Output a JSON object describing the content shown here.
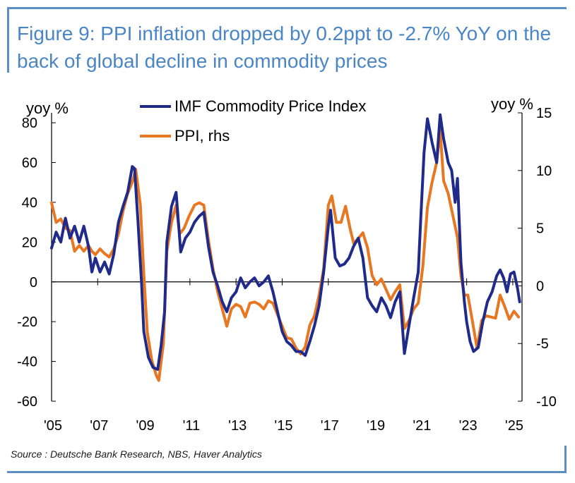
{
  "title": "Figure 9: PPI inflation dropped by 0.2ppt to -2.7% YoY on the back of global decline in commodity prices",
  "source": "Source : Deutsche Bank Research, NBS, Haver Analytics",
  "colors": {
    "accent": "#4a86c5",
    "imf": "#1f2a8a",
    "ppi": "#e87722"
  },
  "chart_data": {
    "type": "line",
    "left_axis_label": "yoy %",
    "right_axis_label": "yoy %",
    "ylim_left": [
      -60,
      85
    ],
    "ylim_right": [
      -10,
      15
    ],
    "yticks_left": [
      80,
      60,
      40,
      20,
      0,
      -20,
      -40,
      -60
    ],
    "yticks_right": [
      15,
      10,
      5,
      0,
      -5,
      -10
    ],
    "xlim": [
      2005,
      2025.4
    ],
    "xticks": [
      {
        "x": 2005,
        "label": "'05"
      },
      {
        "x": 2007,
        "label": "'07"
      },
      {
        "x": 2009,
        "label": "'09"
      },
      {
        "x": 2011,
        "label": "'11"
      },
      {
        "x": 2013,
        "label": "'13"
      },
      {
        "x": 2015,
        "label": "'15"
      },
      {
        "x": 2017,
        "label": "'17"
      },
      {
        "x": 2019,
        "label": "'19"
      },
      {
        "x": 2021,
        "label": "'21"
      },
      {
        "x": 2023,
        "label": "'23"
      },
      {
        "x": 2025,
        "label": "'25"
      }
    ],
    "grid": false,
    "legend_position": "top-center",
    "series": [
      {
        "name": "IMF Commodity Price Index",
        "axis": "left",
        "points": [
          [
            2005.0,
            17
          ],
          [
            2005.2,
            25
          ],
          [
            2005.4,
            20
          ],
          [
            2005.6,
            32
          ],
          [
            2005.8,
            22
          ],
          [
            2006.0,
            28
          ],
          [
            2006.2,
            20
          ],
          [
            2006.4,
            28
          ],
          [
            2006.6,
            18
          ],
          [
            2006.75,
            5
          ],
          [
            2006.9,
            12
          ],
          [
            2007.1,
            5
          ],
          [
            2007.3,
            10
          ],
          [
            2007.5,
            4
          ],
          [
            2007.7,
            14
          ],
          [
            2007.9,
            30
          ],
          [
            2008.1,
            38
          ],
          [
            2008.3,
            45
          ],
          [
            2008.5,
            58
          ],
          [
            2008.6,
            57
          ],
          [
            2008.75,
            30
          ],
          [
            2008.9,
            0
          ],
          [
            2009.0,
            -25
          ],
          [
            2009.2,
            -38
          ],
          [
            2009.4,
            -43
          ],
          [
            2009.6,
            -44
          ],
          [
            2009.75,
            -32
          ],
          [
            2009.9,
            -15
          ],
          [
            2010.0,
            20
          ],
          [
            2010.2,
            38
          ],
          [
            2010.4,
            45
          ],
          [
            2010.5,
            30
          ],
          [
            2010.6,
            15
          ],
          [
            2010.8,
            22
          ],
          [
            2011.0,
            25
          ],
          [
            2011.2,
            30
          ],
          [
            2011.4,
            33
          ],
          [
            2011.6,
            35
          ],
          [
            2011.8,
            18
          ],
          [
            2012.0,
            5
          ],
          [
            2012.2,
            -2
          ],
          [
            2012.4,
            -10
          ],
          [
            2012.6,
            -15
          ],
          [
            2012.8,
            -8
          ],
          [
            2013.0,
            -5
          ],
          [
            2013.2,
            2
          ],
          [
            2013.4,
            -3
          ],
          [
            2013.6,
            0
          ],
          [
            2013.8,
            2
          ],
          [
            2014.0,
            -2
          ],
          [
            2014.2,
            0
          ],
          [
            2014.4,
            3
          ],
          [
            2014.6,
            -5
          ],
          [
            2014.8,
            -15
          ],
          [
            2015.0,
            -25
          ],
          [
            2015.2,
            -30
          ],
          [
            2015.4,
            -32
          ],
          [
            2015.6,
            -35
          ],
          [
            2015.8,
            -35
          ],
          [
            2016.0,
            -37
          ],
          [
            2016.2,
            -30
          ],
          [
            2016.4,
            -22
          ],
          [
            2016.6,
            -12
          ],
          [
            2016.8,
            5
          ],
          [
            2017.0,
            28
          ],
          [
            2017.1,
            36
          ],
          [
            2017.3,
            12
          ],
          [
            2017.5,
            8
          ],
          [
            2017.7,
            9
          ],
          [
            2017.9,
            12
          ],
          [
            2018.1,
            18
          ],
          [
            2018.3,
            22
          ],
          [
            2018.5,
            12
          ],
          [
            2018.7,
            -8
          ],
          [
            2018.9,
            -12
          ],
          [
            2019.1,
            -15
          ],
          [
            2019.3,
            -8
          ],
          [
            2019.5,
            -12
          ],
          [
            2019.7,
            -18
          ],
          [
            2019.9,
            -10
          ],
          [
            2020.1,
            -5
          ],
          [
            2020.3,
            -36
          ],
          [
            2020.5,
            -22
          ],
          [
            2020.7,
            -8
          ],
          [
            2020.9,
            5
          ],
          [
            2021.0,
            30
          ],
          [
            2021.15,
            65
          ],
          [
            2021.3,
            82
          ],
          [
            2021.5,
            70
          ],
          [
            2021.7,
            60
          ],
          [
            2021.85,
            84
          ],
          [
            2022.0,
            72
          ],
          [
            2022.2,
            60
          ],
          [
            2022.35,
            56
          ],
          [
            2022.5,
            40
          ],
          [
            2022.6,
            52
          ],
          [
            2022.75,
            10
          ],
          [
            2022.9,
            -10
          ],
          [
            2023.0,
            -20
          ],
          [
            2023.15,
            -30
          ],
          [
            2023.3,
            -35
          ],
          [
            2023.5,
            -33
          ],
          [
            2023.7,
            -20
          ],
          [
            2023.9,
            -10
          ],
          [
            2024.1,
            -5
          ],
          [
            2024.3,
            3
          ],
          [
            2024.45,
            6
          ],
          [
            2024.6,
            2
          ],
          [
            2024.75,
            -5
          ],
          [
            2024.9,
            4
          ],
          [
            2025.05,
            5
          ],
          [
            2025.2,
            -3
          ],
          [
            2025.3,
            -10
          ]
        ]
      },
      {
        "name": "PPI, rhs",
        "axis": "right",
        "points": [
          [
            2005.0,
            7.2
          ],
          [
            2005.2,
            5.5
          ],
          [
            2005.4,
            5.8
          ],
          [
            2005.6,
            5
          ],
          [
            2005.8,
            4.8
          ],
          [
            2006.0,
            3
          ],
          [
            2006.2,
            3.5
          ],
          [
            2006.4,
            3
          ],
          [
            2006.6,
            3.5
          ],
          [
            2006.75,
            3
          ],
          [
            2006.9,
            2.7
          ],
          [
            2007.1,
            3.2
          ],
          [
            2007.3,
            2.8
          ],
          [
            2007.5,
            2.5
          ],
          [
            2007.7,
            3.2
          ],
          [
            2007.9,
            4.5
          ],
          [
            2008.1,
            6.5
          ],
          [
            2008.3,
            8
          ],
          [
            2008.5,
            9
          ],
          [
            2008.65,
            10.1
          ],
          [
            2008.85,
            7
          ],
          [
            2009.0,
            1
          ],
          [
            2009.15,
            -4
          ],
          [
            2009.35,
            -6.5
          ],
          [
            2009.55,
            -7.8
          ],
          [
            2009.65,
            -8.2
          ],
          [
            2009.85,
            -5
          ],
          [
            2010.0,
            3
          ],
          [
            2010.2,
            5.5
          ],
          [
            2010.4,
            7
          ],
          [
            2010.55,
            4.5
          ],
          [
            2010.75,
            5
          ],
          [
            2010.95,
            6
          ],
          [
            2011.2,
            7
          ],
          [
            2011.4,
            7.2
          ],
          [
            2011.6,
            7
          ],
          [
            2011.8,
            4
          ],
          [
            2012.0,
            1.5
          ],
          [
            2012.2,
            -0.5
          ],
          [
            2012.4,
            -2
          ],
          [
            2012.6,
            -3.5
          ],
          [
            2012.8,
            -2
          ],
          [
            2013.0,
            -1.6
          ],
          [
            2013.2,
            -1.8
          ],
          [
            2013.4,
            -2.7
          ],
          [
            2013.6,
            -1.5
          ],
          [
            2013.8,
            -1.4
          ],
          [
            2014.0,
            -1.6
          ],
          [
            2014.2,
            -2
          ],
          [
            2014.4,
            -1.3
          ],
          [
            2014.6,
            -1.5
          ],
          [
            2014.8,
            -2.5
          ],
          [
            2015.0,
            -3.5
          ],
          [
            2015.2,
            -4.5
          ],
          [
            2015.4,
            -4.6
          ],
          [
            2015.6,
            -5.4
          ],
          [
            2015.8,
            -5.9
          ],
          [
            2016.0,
            -5.3
          ],
          [
            2016.2,
            -3.4
          ],
          [
            2016.4,
            -2.6
          ],
          [
            2016.6,
            -0.8
          ],
          [
            2016.8,
            1.5
          ],
          [
            2017.0,
            7
          ],
          [
            2017.15,
            7.8
          ],
          [
            2017.35,
            5.5
          ],
          [
            2017.55,
            5.5
          ],
          [
            2017.75,
            6.9
          ],
          [
            2017.95,
            4.9
          ],
          [
            2018.1,
            3.7
          ],
          [
            2018.3,
            4.1
          ],
          [
            2018.5,
            4.6
          ],
          [
            2018.7,
            3.3
          ],
          [
            2018.9,
            0.9
          ],
          [
            2019.1,
            0.1
          ],
          [
            2019.3,
            0.6
          ],
          [
            2019.5,
            -0.3
          ],
          [
            2019.7,
            -1.2
          ],
          [
            2019.9,
            -0.5
          ],
          [
            2020.1,
            0.1
          ],
          [
            2020.3,
            -3.7
          ],
          [
            2020.5,
            -3
          ],
          [
            2020.7,
            -2
          ],
          [
            2020.9,
            -1.5
          ],
          [
            2021.1,
            1.7
          ],
          [
            2021.3,
            6.8
          ],
          [
            2021.5,
            9
          ],
          [
            2021.7,
            10.7
          ],
          [
            2021.85,
            13.5
          ],
          [
            2022.0,
            9.1
          ],
          [
            2022.2,
            8
          ],
          [
            2022.4,
            6.1
          ],
          [
            2022.6,
            4.2
          ],
          [
            2022.75,
            0.9
          ],
          [
            2022.9,
            -0.8
          ],
          [
            2023.05,
            -0.8
          ],
          [
            2023.2,
            -2.5
          ],
          [
            2023.45,
            -5.4
          ],
          [
            2023.65,
            -3
          ],
          [
            2023.85,
            -2.6
          ],
          [
            2024.05,
            -2.7
          ],
          [
            2024.25,
            -2.8
          ],
          [
            2024.45,
            -0.8
          ],
          [
            2024.65,
            -1.8
          ],
          [
            2024.85,
            -2.9
          ],
          [
            2025.05,
            -2.2
          ],
          [
            2025.25,
            -2.7
          ]
        ]
      }
    ]
  }
}
